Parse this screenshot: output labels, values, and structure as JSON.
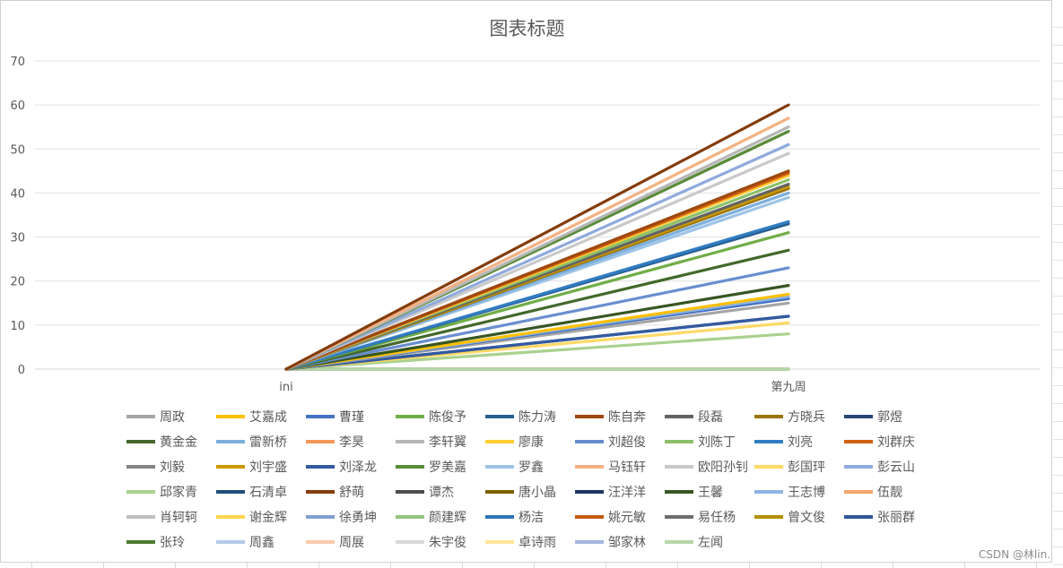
{
  "chart_data": {
    "type": "line",
    "title": "图表标题",
    "categories": [
      "ini",
      "第九周"
    ],
    "ylim": [
      0,
      70
    ],
    "yticks": [
      0,
      10,
      20,
      30,
      40,
      50,
      60,
      70
    ],
    "grid": true,
    "legend_position": "bottom",
    "series": [
      {
        "name": "周政",
        "color": "#a5a5a5",
        "values": [
          0,
          15
        ]
      },
      {
        "name": "艾嘉成",
        "color": "#ffc000",
        "values": [
          0,
          17
        ]
      },
      {
        "name": "曹瑾",
        "color": "#4472c4",
        "values": [
          0,
          16
        ]
      },
      {
        "name": "陈俊予",
        "color": "#70ad47",
        "values": [
          0,
          31
        ]
      },
      {
        "name": "陈力涛",
        "color": "#255e91",
        "values": [
          0,
          33
        ]
      },
      {
        "name": "陈自奔",
        "color": "#9e480e",
        "values": [
          0,
          45
        ]
      },
      {
        "name": "段磊",
        "color": "#636363",
        "values": [
          0,
          42
        ]
      },
      {
        "name": "方晓兵",
        "color": "#997300",
        "values": [
          0,
          41
        ]
      },
      {
        "name": "郭煜",
        "color": "#264478",
        "values": [
          0,
          12
        ]
      },
      {
        "name": "黄金金",
        "color": "#43682b",
        "values": [
          0,
          27
        ]
      },
      {
        "name": "雷新桥",
        "color": "#7cafdd",
        "values": [
          0,
          40
        ]
      },
      {
        "name": "李昊",
        "color": "#f1975a",
        "values": [
          0,
          44
        ]
      },
      {
        "name": "李轩翼",
        "color": "#b7b7b7",
        "values": [
          0,
          55
        ]
      },
      {
        "name": "廖康",
        "color": "#ffcd33",
        "values": [
          0,
          44
        ]
      },
      {
        "name": "刘超俊",
        "color": "#698ed0",
        "values": [
          0,
          23
        ]
      },
      {
        "name": "刘陈丁",
        "color": "#8cc168",
        "values": [
          0,
          43
        ]
      },
      {
        "name": "刘亮",
        "color": "#327dc2",
        "values": [
          0,
          33.5
        ]
      },
      {
        "name": "刘群庆",
        "color": "#d26012",
        "values": [
          0,
          44.5
        ]
      },
      {
        "name": "刘毅",
        "color": "#848484",
        "values": [
          0,
          0
        ]
      },
      {
        "name": "刘宇盛",
        "color": "#cc9a00",
        "values": [
          0,
          41.5
        ]
      },
      {
        "name": "刘泽龙",
        "color": "#335aa1",
        "values": [
          0,
          12
        ]
      },
      {
        "name": "罗美嘉",
        "color": "#5a8b39",
        "values": [
          0,
          54
        ]
      },
      {
        "name": "罗鑫",
        "color": "#9dc3e6",
        "values": [
          0,
          39
        ]
      },
      {
        "name": "马钰轩",
        "color": "#f4b183",
        "values": [
          0,
          57
        ]
      },
      {
        "name": "欧阳孙钊",
        "color": "#c9c9c9",
        "values": [
          0,
          49
        ]
      },
      {
        "name": "彭国玶",
        "color": "#ffd966",
        "values": [
          0,
          10.5
        ]
      },
      {
        "name": "彭云山",
        "color": "#8faadc",
        "values": [
          0,
          51
        ]
      },
      {
        "name": "邱家青",
        "color": "#a9d18e",
        "values": [
          0,
          8
        ]
      },
      {
        "name": "石清卓",
        "color": "#1f4e79",
        "values": [
          0,
          0
        ]
      },
      {
        "name": "舒萌",
        "color": "#843c0c",
        "values": [
          0,
          60
        ]
      },
      {
        "name": "谭杰",
        "color": "#4d4d4d",
        "values": [
          0,
          0
        ]
      },
      {
        "name": "唐小晶",
        "color": "#7f6000",
        "values": [
          0,
          0
        ]
      },
      {
        "name": "汪洋洋",
        "color": "#1c3461",
        "values": [
          0,
          0
        ]
      },
      {
        "name": "王馨",
        "color": "#375623",
        "values": [
          0,
          19
        ]
      },
      {
        "name": "王志博",
        "color": "#8db4e2",
        "values": [
          0,
          16.5
        ]
      },
      {
        "name": "伍靓",
        "color": "#f4a46e",
        "values": [
          0,
          0
        ]
      },
      {
        "name": "肖轲轲",
        "color": "#bfbfbf",
        "values": [
          0,
          0
        ]
      },
      {
        "name": "谢金辉",
        "color": "#ffd54f",
        "values": [
          0,
          0
        ]
      },
      {
        "name": "徐勇坤",
        "color": "#7f9fd4",
        "values": [
          0,
          0
        ]
      },
      {
        "name": "颜建辉",
        "color": "#93c47d",
        "values": [
          0,
          0
        ]
      },
      {
        "name": "杨洁",
        "color": "#2e75b6",
        "values": [
          0,
          0
        ]
      },
      {
        "name": "姚元敏",
        "color": "#c55a11",
        "values": [
          0,
          0
        ]
      },
      {
        "name": "易任杨",
        "color": "#6e6e6e",
        "values": [
          0,
          0
        ]
      },
      {
        "name": "曾文俊",
        "color": "#b38f00",
        "values": [
          0,
          0
        ]
      },
      {
        "name": "张丽群",
        "color": "#2f5597",
        "values": [
          0,
          0
        ]
      },
      {
        "name": "张玲",
        "color": "#4f7a2e",
        "values": [
          0,
          0
        ]
      },
      {
        "name": "周鑫",
        "color": "#b4cbe8",
        "values": [
          0,
          0
        ]
      },
      {
        "name": "周展",
        "color": "#f8cbad",
        "values": [
          0,
          0
        ]
      },
      {
        "name": "朱宇俊",
        "color": "#d9d9d9",
        "values": [
          0,
          0
        ]
      },
      {
        "name": "卓诗雨",
        "color": "#ffe699",
        "values": [
          0,
          0
        ]
      },
      {
        "name": "邹家林",
        "color": "#a4b7e0",
        "values": [
          0,
          0
        ]
      },
      {
        "name": "左闻",
        "color": "#b6d7a8",
        "values": [
          0,
          0
        ]
      }
    ]
  },
  "watermark": "CSDN @林lin."
}
